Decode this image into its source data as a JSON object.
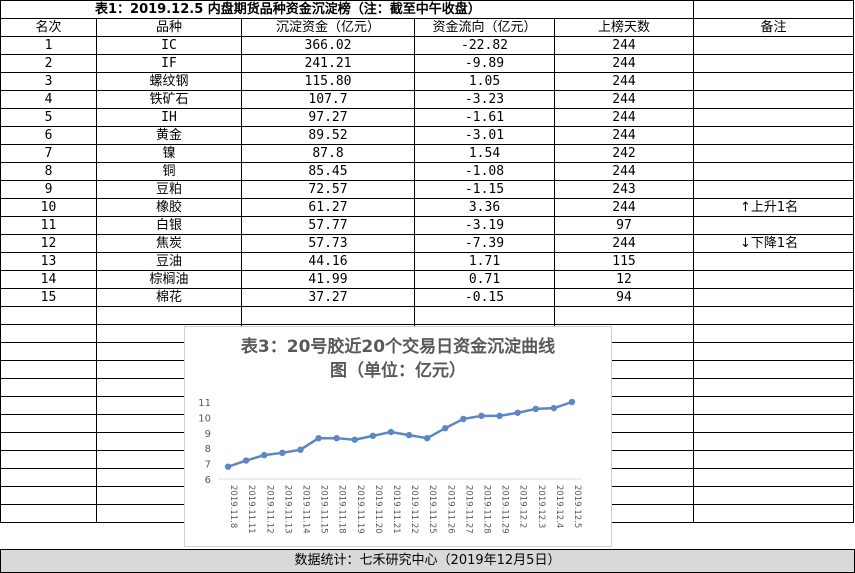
{
  "title": "表1：2019.12.5 内盘期货品种资金沉淀榜（注：截至中午收盘）",
  "headers": {
    "rank": "名次",
    "name": "品种",
    "capital": "沉淀资金（亿元）",
    "flow": "资金流向（亿元）",
    "days": "上榜天数",
    "note": "备注"
  },
  "rows": [
    {
      "rank": "1",
      "name": "IC",
      "capital": "366.02",
      "flow": "-22.82",
      "days": "244",
      "note": ""
    },
    {
      "rank": "2",
      "name": "IF",
      "capital": "241.21",
      "flow": "-9.89",
      "days": "244",
      "note": ""
    },
    {
      "rank": "3",
      "name": "螺纹钢",
      "capital": "115.80",
      "flow": "1.05",
      "days": "244",
      "note": ""
    },
    {
      "rank": "4",
      "name": "铁矿石",
      "capital": "107.7",
      "flow": "-3.23",
      "days": "244",
      "note": ""
    },
    {
      "rank": "5",
      "name": "IH",
      "capital": "97.27",
      "flow": "-1.61",
      "days": "244",
      "note": ""
    },
    {
      "rank": "6",
      "name": "黄金",
      "capital": "89.52",
      "flow": "-3.01",
      "days": "244",
      "note": ""
    },
    {
      "rank": "7",
      "name": "镍",
      "capital": "87.8",
      "flow": "1.54",
      "days": "242",
      "note": ""
    },
    {
      "rank": "8",
      "name": "铜",
      "capital": "85.45",
      "flow": "-1.08",
      "days": "244",
      "note": ""
    },
    {
      "rank": "9",
      "name": "豆粕",
      "capital": "72.57",
      "flow": "-1.15",
      "days": "243",
      "note": ""
    },
    {
      "rank": "10",
      "name": "橡胶",
      "capital": "61.27",
      "flow": "3.36",
      "days": "244",
      "note": "↑上升1名"
    },
    {
      "rank": "11",
      "name": "白银",
      "capital": "57.77",
      "flow": "-3.19",
      "days": "97",
      "note": ""
    },
    {
      "rank": "12",
      "name": "焦炭",
      "capital": "57.73",
      "flow": "-7.39",
      "days": "244",
      "note": "↓下降1名"
    },
    {
      "rank": "13",
      "name": "豆油",
      "capital": "44.16",
      "flow": "1.71",
      "days": "115",
      "note": ""
    },
    {
      "rank": "14",
      "name": "棕榈油",
      "capital": "41.99",
      "flow": "0.71",
      "days": "12",
      "note": ""
    },
    {
      "rank": "15",
      "name": "棉花",
      "capital": "37.27",
      "flow": "-0.15",
      "days": "94",
      "note": ""
    }
  ],
  "footer": "数据统计：七禾研究中心（2019年12月5日）",
  "chart_data": {
    "type": "line",
    "title": "表3：20号胶近20个交易日资金沉淀曲线图（单位：亿元）",
    "title_line1": "表3：20号胶近20个交易日资金沉淀曲线",
    "title_line2": "图（单位：亿元）",
    "x": [
      "2019.11.8",
      "2019.11.11",
      "2019.11.12",
      "2019.11.13",
      "2019.11.14",
      "2019.11.15",
      "2019.11.18",
      "2019.11.19",
      "2019.11.20",
      "2019.11.21",
      "2019.11.22",
      "2019.11.25",
      "2019.11.26",
      "2019.11.27",
      "2019.11.28",
      "2019.11.29",
      "2019.12.2",
      "2019.12.3",
      "2019.12.4",
      "2019.12.5"
    ],
    "values": [
      6.8,
      7.2,
      7.55,
      7.7,
      7.9,
      8.65,
      8.65,
      8.55,
      8.8,
      9.05,
      8.85,
      8.65,
      9.3,
      9.9,
      10.1,
      10.1,
      10.3,
      10.55,
      10.6,
      11.0
    ],
    "ylim": [
      6,
      11
    ],
    "yticks": [
      "6",
      "7",
      "8",
      "9",
      "10",
      "11"
    ],
    "grid": false,
    "line_color": "#5b87c5",
    "title_color": "#595959"
  }
}
